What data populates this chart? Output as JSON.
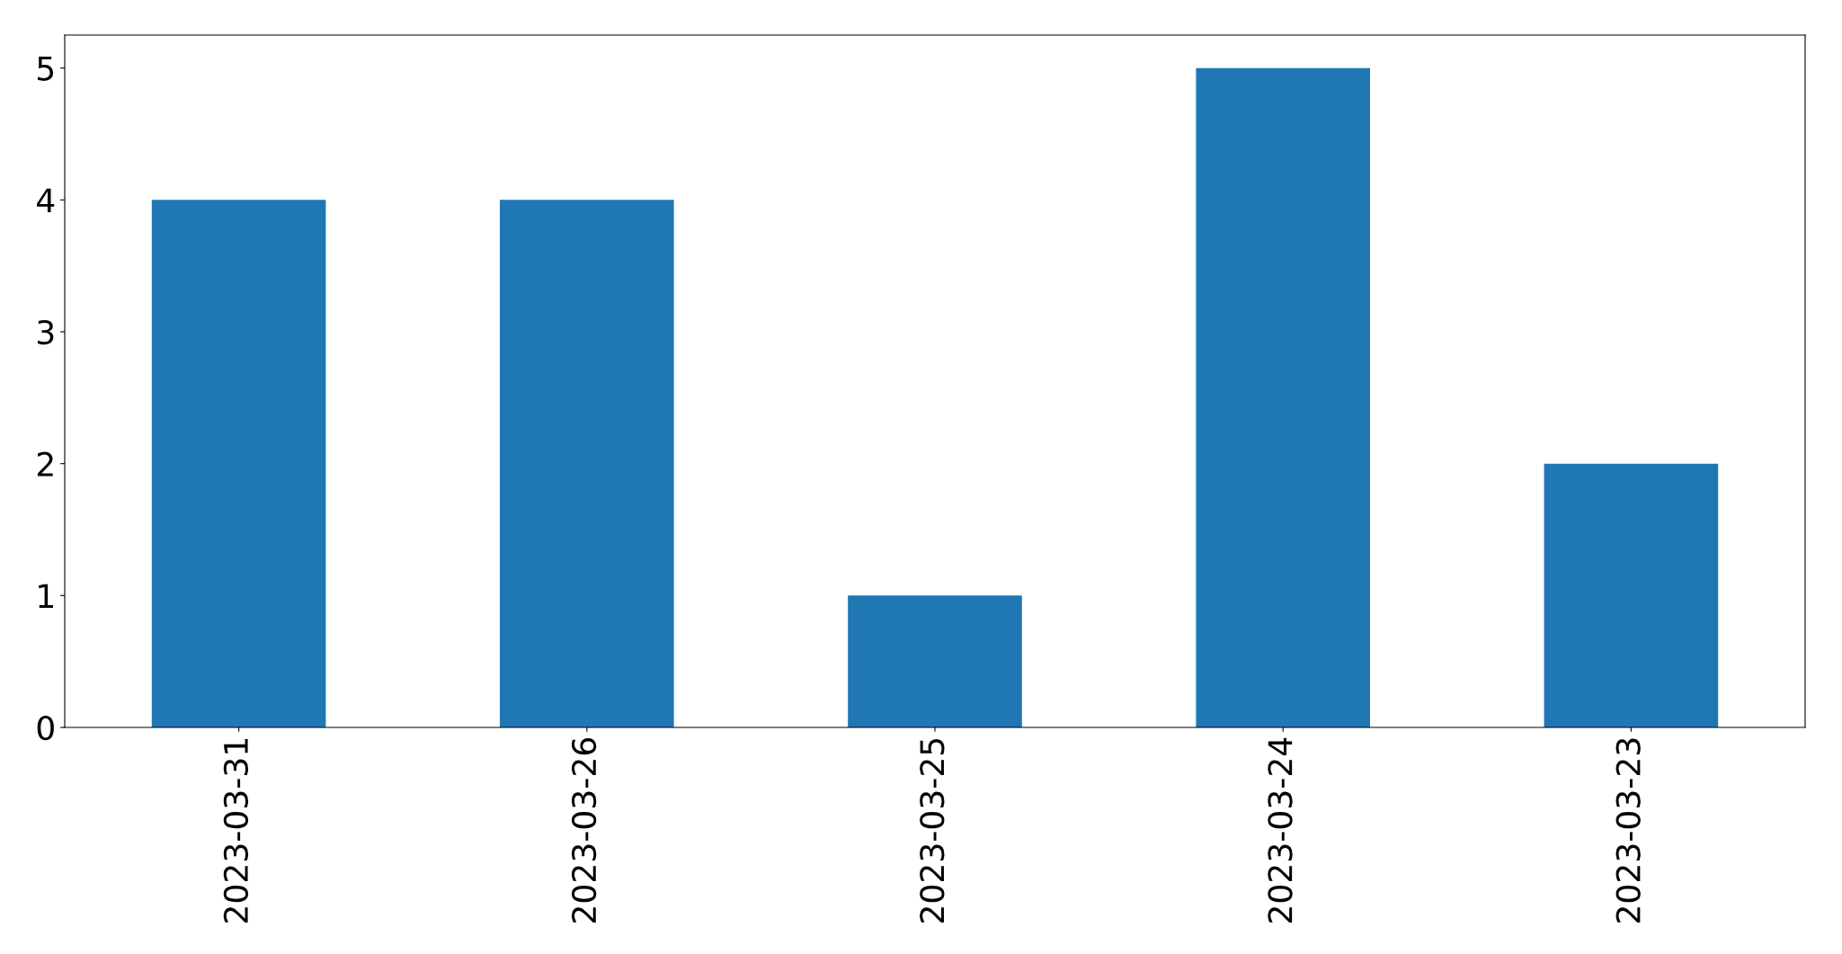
{
  "chart_data": {
    "type": "bar",
    "categories": [
      "2023-03-31",
      "2023-03-26",
      "2023-03-25",
      "2023-03-24",
      "2023-03-23"
    ],
    "values": [
      4,
      4,
      1,
      5,
      2
    ],
    "color": "#1f77b4",
    "ylim": [
      0,
      5.25
    ],
    "yticks": [
      0,
      1,
      2,
      3,
      4,
      5
    ],
    "grid": false
  }
}
